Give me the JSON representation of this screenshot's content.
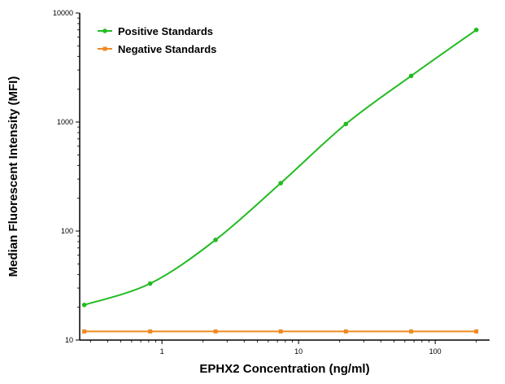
{
  "chart_data": {
    "type": "line",
    "title": "",
    "xlabel": "EPHX2 Concentration (ng/ml)",
    "ylabel": "Median Fluorescent Intensity (MFI)",
    "xscale": "log",
    "yscale": "log",
    "xlim": [
      0.25,
      250
    ],
    "ylim": [
      10,
      10000
    ],
    "xticks": [
      1,
      10,
      100
    ],
    "xtick_labels": [
      "1",
      "10",
      "100"
    ],
    "yticks": [
      10,
      100,
      1000,
      10000
    ],
    "ytick_labels": [
      "10",
      "100",
      "1000",
      "10000"
    ],
    "grid": false,
    "legend_position": "top-left",
    "series": [
      {
        "name": "Positive Standards",
        "color": "#22bb22",
        "marker": "circle",
        "fit": "smooth curve",
        "x": [
          0.27,
          0.82,
          2.47,
          7.4,
          22.2,
          66.7,
          200
        ],
        "y": [
          21,
          33,
          83,
          275,
          960,
          2650,
          7000
        ]
      },
      {
        "name": "Negative Standards",
        "color": "#ee8a22",
        "marker": "square",
        "fit": "straight line",
        "x": [
          0.27,
          0.82,
          2.47,
          7.4,
          22.2,
          66.7,
          200
        ],
        "y": [
          12,
          12,
          12,
          12,
          12,
          12,
          12
        ]
      }
    ]
  }
}
